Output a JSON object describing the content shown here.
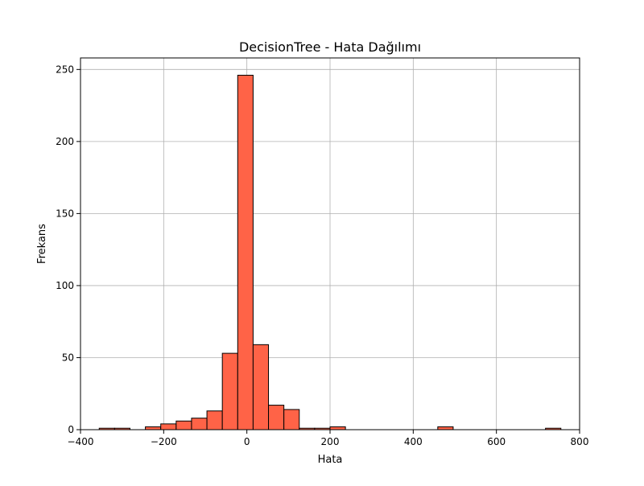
{
  "chart_data": {
    "type": "bar",
    "title": "DecisionTree - Hata Dağılımı",
    "xlabel": "Hata",
    "ylabel": "Frekans",
    "xlim": [
      -400,
      800
    ],
    "ylim": [
      0,
      258
    ],
    "x_ticks": [
      -400,
      -200,
      0,
      200,
      400,
      600,
      800
    ],
    "y_ticks": [
      0,
      50,
      100,
      150,
      200,
      250
    ],
    "grid": true,
    "bar_color": "#ff6347",
    "edge_color": "#000000",
    "bins": [
      {
        "x0": -355,
        "x1": -318,
        "count": 1
      },
      {
        "x0": -318,
        "x1": -281,
        "count": 1
      },
      {
        "x0": -281,
        "x1": -244,
        "count": 0
      },
      {
        "x0": -244,
        "x1": -207,
        "count": 2
      },
      {
        "x0": -207,
        "x1": -170,
        "count": 4
      },
      {
        "x0": -170,
        "x1": -133,
        "count": 6
      },
      {
        "x0": -133,
        "x1": -96,
        "count": 8
      },
      {
        "x0": -96,
        "x1": -59,
        "count": 13
      },
      {
        "x0": -59,
        "x1": -22,
        "count": 53
      },
      {
        "x0": -22,
        "x1": 15,
        "count": 246
      },
      {
        "x0": 15,
        "x1": 52,
        "count": 59
      },
      {
        "x0": 52,
        "x1": 89,
        "count": 17
      },
      {
        "x0": 89,
        "x1": 126,
        "count": 14
      },
      {
        "x0": 126,
        "x1": 163,
        "count": 1
      },
      {
        "x0": 163,
        "x1": 200,
        "count": 1
      },
      {
        "x0": 200,
        "x1": 237,
        "count": 2
      },
      {
        "x0": 237,
        "x1": 274,
        "count": 0
      },
      {
        "x0": 274,
        "x1": 311,
        "count": 0
      },
      {
        "x0": 311,
        "x1": 348,
        "count": 0
      },
      {
        "x0": 348,
        "x1": 385,
        "count": 0
      },
      {
        "x0": 385,
        "x1": 422,
        "count": 0
      },
      {
        "x0": 422,
        "x1": 459,
        "count": 0
      },
      {
        "x0": 459,
        "x1": 496,
        "count": 2
      },
      {
        "x0": 496,
        "x1": 533,
        "count": 0
      },
      {
        "x0": 533,
        "x1": 570,
        "count": 0
      },
      {
        "x0": 570,
        "x1": 607,
        "count": 0
      },
      {
        "x0": 607,
        "x1": 644,
        "count": 0
      },
      {
        "x0": 644,
        "x1": 681,
        "count": 0
      },
      {
        "x0": 681,
        "x1": 718,
        "count": 0
      },
      {
        "x0": 718,
        "x1": 755,
        "count": 1
      }
    ]
  }
}
